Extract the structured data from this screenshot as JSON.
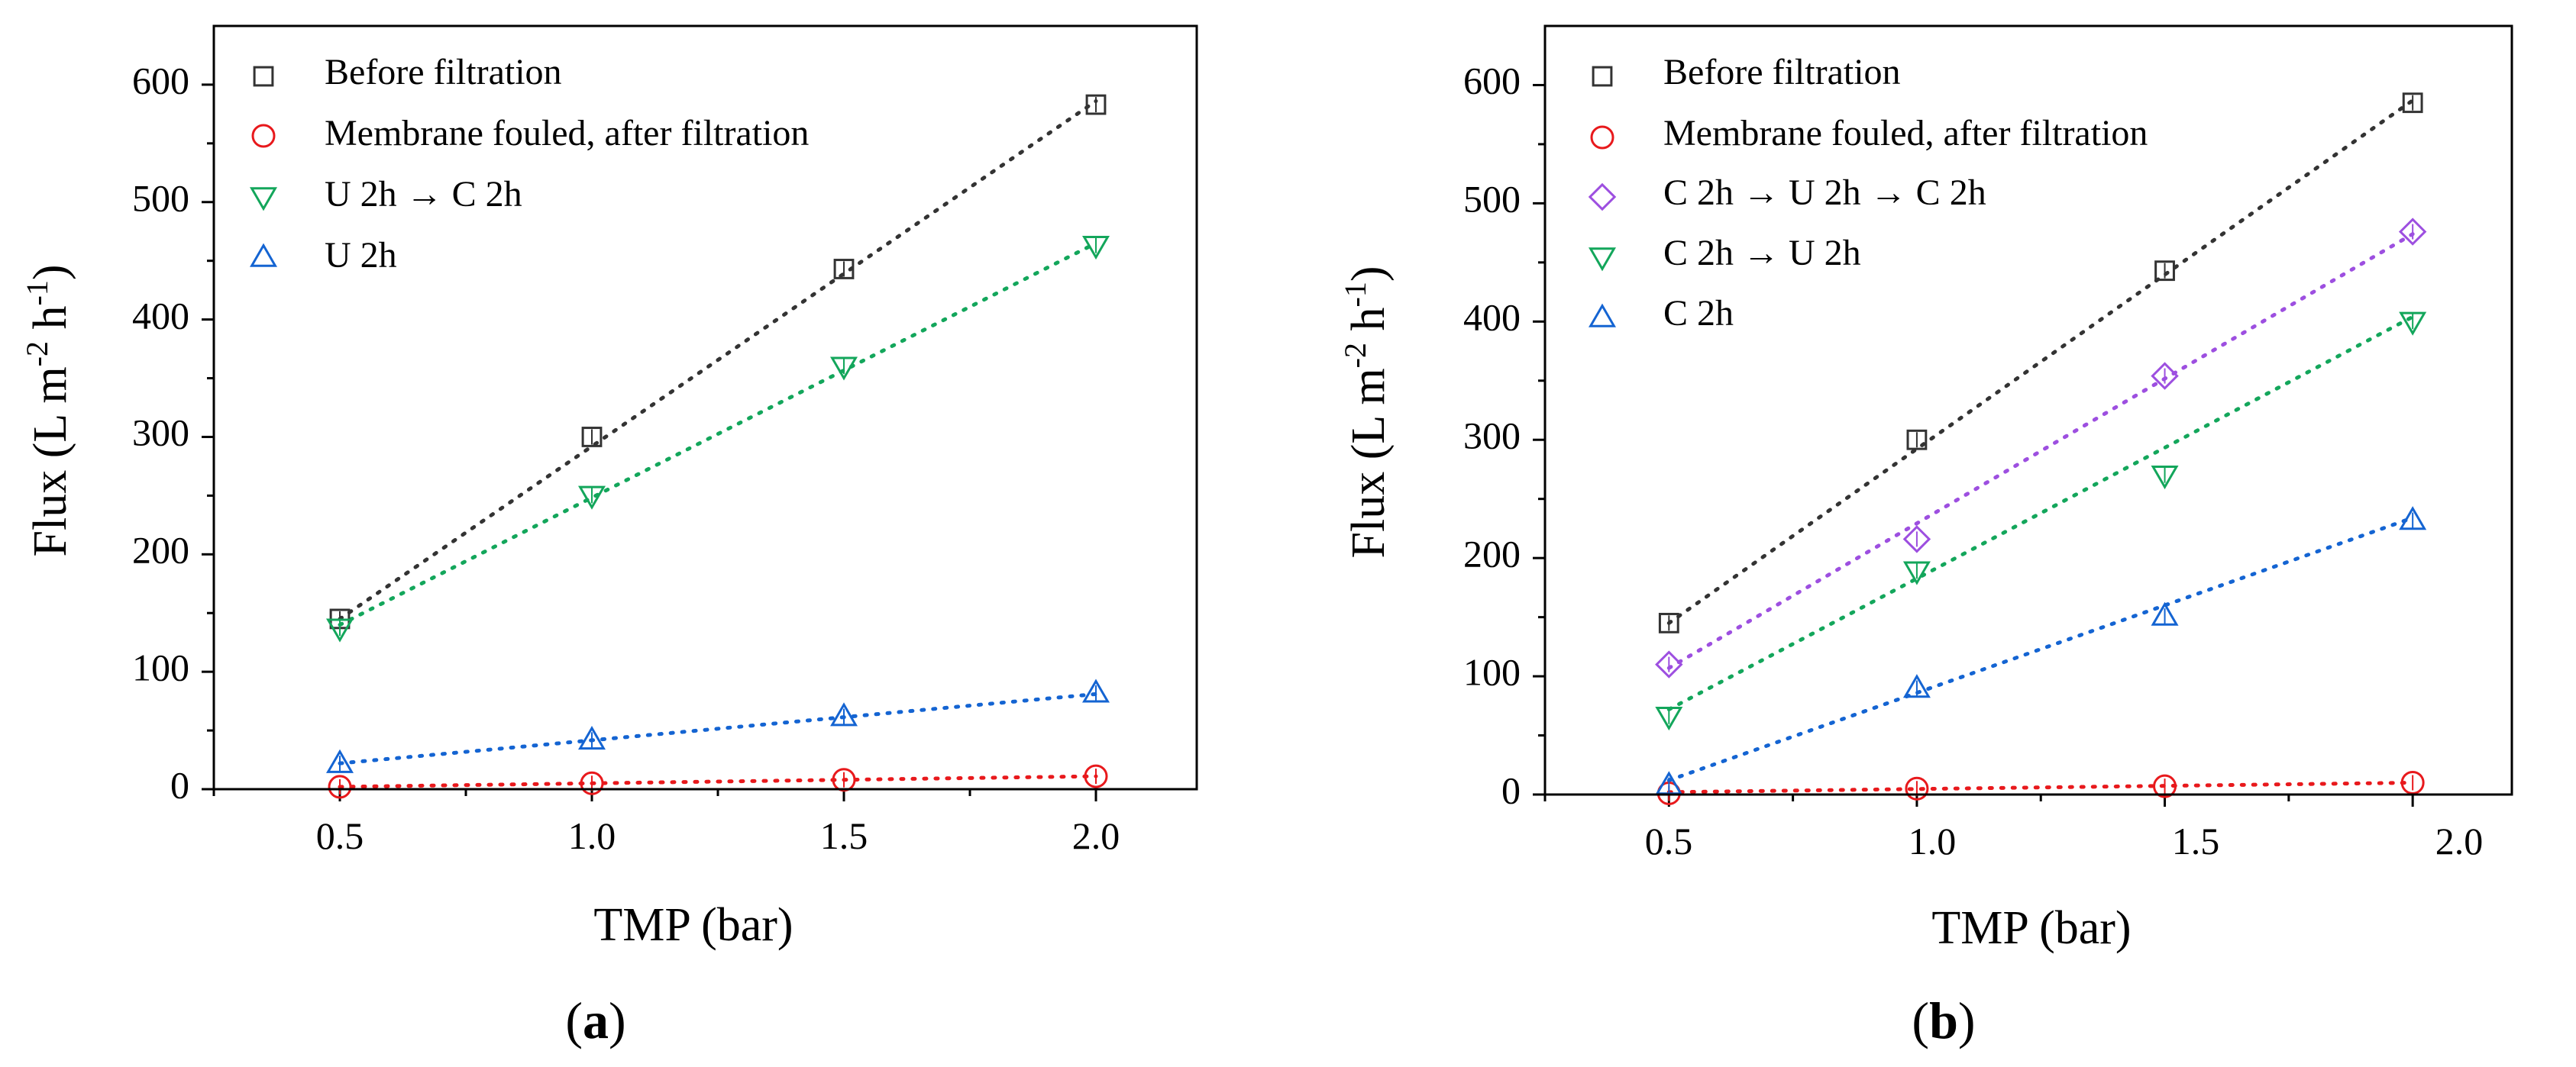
{
  "chart_data": [
    {
      "type": "scatter",
      "panel_label": "a",
      "xlabel": "TMP (bar)",
      "ylabel": {
        "base": "Flux (L m",
        "sup1": "-2",
        "mid": " h",
        "sup2": "-1",
        "end": ")"
      },
      "xlim": [
        0.25,
        2.2
      ],
      "ylim": [
        0,
        650
      ],
      "xticks": [
        "0.5",
        "1.0",
        "1.5",
        "2.0"
      ],
      "yticks": [
        "0",
        "100",
        "200",
        "300",
        "400",
        "500",
        "600"
      ],
      "x": [
        0.5,
        1.0,
        1.5,
        2.0
      ],
      "legend_position": "top-left",
      "series": [
        {
          "name": "Before filtration",
          "marker": "square",
          "color": "#333333",
          "values": [
            145,
            300,
            443,
            583
          ],
          "trend": [
            145,
            294,
            440,
            586
          ]
        },
        {
          "name": "Membrane fouled, after filtration",
          "marker": "circle",
          "color": "#e8191c",
          "values": [
            2,
            5,
            8,
            11
          ],
          "trend": [
            2,
            5,
            8,
            11
          ]
        },
        {
          "name": "U 2h → C 2h",
          "marker": "triangle-down",
          "color": "#13a65b",
          "values": [
            137,
            250,
            360,
            463
          ],
          "trend": [
            140,
            249,
            357,
            465
          ]
        },
        {
          "name": "U 2h",
          "marker": "triangle-up",
          "color": "#1464d2",
          "values": [
            22,
            42,
            62,
            82
          ],
          "trend": [
            22,
            42,
            62,
            81
          ]
        }
      ]
    },
    {
      "type": "scatter",
      "panel_label": "b",
      "xlabel": "TMP (bar)",
      "ylabel": {
        "base": "Flux (L m",
        "sup1": "-2",
        "mid": " h",
        "sup2": "-1",
        "end": ")"
      },
      "xlim": [
        0.25,
        2.2
      ],
      "ylim": [
        0,
        650
      ],
      "xticks": [
        "0.5",
        "1.0",
        "1.5",
        "2.0"
      ],
      "yticks": [
        "0",
        "100",
        "200",
        "300",
        "400",
        "500",
        "600"
      ],
      "x": [
        0.5,
        1.0,
        1.5,
        2.0
      ],
      "legend_position": "top-left",
      "series": [
        {
          "name": "Before filtration",
          "marker": "square",
          "color": "#333333",
          "values": [
            145,
            300,
            443,
            585
          ],
          "trend": [
            145,
            292,
            440,
            587
          ]
        },
        {
          "name": "Membrane fouled, after filtration",
          "marker": "circle",
          "color": "#e8191c",
          "values": [
            1,
            5,
            7,
            10
          ],
          "trend": [
            2,
            5,
            7,
            10
          ]
        },
        {
          "name": "C 2h → U 2h → C 2h",
          "marker": "diamond",
          "color": "#9d4fe0",
          "values": [
            110,
            216,
            354,
            476
          ],
          "trend": [
            107,
            230,
            352,
            474
          ]
        },
        {
          "name": "C 2h → U 2h",
          "marker": "triangle-down",
          "color": "#13a65b",
          "values": [
            66,
            189,
            270,
            400
          ],
          "trend": [
            72,
            183,
            293,
            404
          ]
        },
        {
          "name": "C 2h",
          "marker": "triangle-up",
          "color": "#1464d2",
          "values": [
            8,
            90,
            151,
            232
          ],
          "trend": [
            12,
            86,
            160,
            234
          ]
        }
      ]
    }
  ]
}
